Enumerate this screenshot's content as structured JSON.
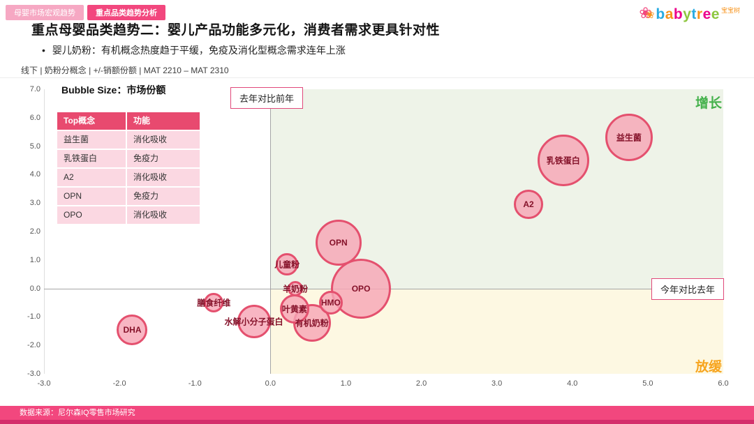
{
  "tabs": [
    {
      "label": "母婴市场宏观趋势"
    },
    {
      "label": "重点品类趋势分析"
    }
  ],
  "logo": {
    "brand": "babytree",
    "cn": "宝宝树",
    "letter_colors": [
      "#29abe2",
      "#f7941d",
      "#ec008c",
      "#8dc63f",
      "#29abe2",
      "#f7941d",
      "#ec008c",
      "#8dc63f"
    ]
  },
  "title": "重点母婴品类趋势二：婴儿产品功能多元化，消费者需求更具针对性",
  "bullet": "婴儿奶粉：有机概念热度趋于平缓，免疫及消化型概念需求连年上涨",
  "meta": "线下 | 奶粉分概念 | +/-销额份额 | MAT 2210 – MAT 2310",
  "legend_table": {
    "headers": [
      "Top概念",
      "功能"
    ],
    "rows": [
      [
        "益生菌",
        "消化吸收"
      ],
      [
        "乳铁蛋白",
        "免疫力"
      ],
      [
        "A2",
        "消化吸收"
      ],
      [
        "OPN",
        "免疫力"
      ],
      [
        "OPO",
        "消化吸收"
      ]
    ]
  },
  "chart_data": {
    "type": "scatter",
    "bubble_size_label": "Bubble Size：市场份额",
    "annotation_top": "去年对比前年",
    "annotation_right": "今年对比去年",
    "quadrant_labels": {
      "top_right": "增长",
      "bottom_right": "放缓"
    },
    "xlim": [
      -3,
      6
    ],
    "ylim": [
      -3,
      7
    ],
    "x_tick_labels": [
      "-3.0",
      "-2.0",
      "-1.0",
      "0.0",
      "1.0",
      "2.0",
      "3.0",
      "4.0",
      "5.0",
      "6.0"
    ],
    "y_tick_labels": [
      "7.0",
      "6.0",
      "5.0",
      "4.0",
      "3.0",
      "2.0",
      "1.0",
      "0.0",
      "-1.0",
      "-2.0",
      "-3.0"
    ],
    "bubbles": [
      {
        "label": "益生菌",
        "x": 4.75,
        "y": 5.3,
        "r": 34
      },
      {
        "label": "乳铁蛋白",
        "x": 3.88,
        "y": 4.5,
        "r": 37
      },
      {
        "label": "A2",
        "x": 3.42,
        "y": 2.95,
        "r": 21
      },
      {
        "label": "OPN",
        "x": 0.9,
        "y": 1.62,
        "r": 33
      },
      {
        "label": "儿童粉",
        "x": 0.22,
        "y": 0.85,
        "r": 16
      },
      {
        "label": "OPO",
        "x": 1.2,
        "y": 0.0,
        "r": 43
      },
      {
        "label": "羊奶粉",
        "x": 0.33,
        "y": -0.02,
        "r": 11
      },
      {
        "label": "HMO",
        "x": 0.8,
        "y": -0.5,
        "r": 17
      },
      {
        "label": "膳食纤维",
        "x": -0.75,
        "y": -0.5,
        "r": 14
      },
      {
        "label": "叶黄素",
        "x": 0.32,
        "y": -0.72,
        "r": 21
      },
      {
        "label": "水解小分子蛋白",
        "x": -0.22,
        "y": -1.15,
        "r": 24
      },
      {
        "label": "有机奶粉",
        "x": 0.55,
        "y": -1.2,
        "r": 27
      },
      {
        "label": "DHA",
        "x": -1.83,
        "y": -1.45,
        "r": 22
      }
    ],
    "colors": {
      "bubble_fill": "#f7a6b6",
      "bubble_border": "#e4506e",
      "quadrant_growth_bg": "#eef3e8",
      "quadrant_slowdown_bg": "#fdf8e2",
      "growth_label": "#44b14b",
      "slowdown_label": "#f7a41d",
      "accent_pink": "#f2477e"
    }
  },
  "footer": {
    "source": "数据来源：尼尔森IQ零售市场研究"
  }
}
